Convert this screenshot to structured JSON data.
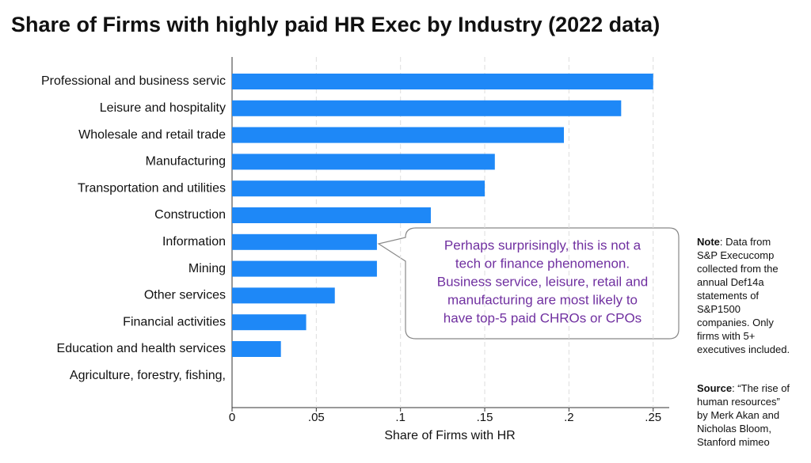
{
  "chart_data": {
    "type": "hbar",
    "title": "Share of Firms with highly paid HR Exec by Industry (2022 data)",
    "x_label": "Share of Firms with HR",
    "categories": [
      "Professional and business servic",
      "Leisure and hospitality",
      "Wholesale and retail trade",
      "Manufacturing",
      "Transportation and utilities",
      "Construction",
      "Information",
      "Mining",
      "Other services",
      "Financial activities",
      "Education and health services",
      "Agriculture, forestry, fishing,"
    ],
    "values": [
      0.25,
      0.231,
      0.197,
      0.156,
      0.15,
      0.118,
      0.086,
      0.086,
      0.061,
      0.044,
      0.029,
      0
    ],
    "color": "#1e88f7",
    "xlim": [
      0,
      0.26
    ],
    "xticks": [
      0,
      {
        "value": 0.05,
        "label": ".05"
      },
      {
        "value": 0.1,
        "label": ".1"
      },
      {
        "value": 0.15,
        "label": ".15"
      },
      {
        "value": 0.2,
        "label": ".2"
      },
      {
        "value": 0.25,
        "label": ".25"
      }
    ],
    "grid": true,
    "annotation": [
      "Perhaps surprisingly, this is not a",
      "tech or finance phenomenon.",
      "Business service, leisure, retail and",
      "manufacturing are most likely to",
      "have top-5 paid CHROs or CPOs"
    ],
    "note": {
      "label": "Note",
      "lines": [
        ": Data from",
        "S&P Execucomp",
        "collected from the",
        "annual Def14a",
        "statements of",
        "S&P1500",
        "companies. Only",
        "firms with 5+",
        "executives included."
      ]
    },
    "source": {
      "label": "Source",
      "lines": [
        ": “The rise of",
        "human resources”",
        "by Merk Akan and",
        "Nicholas Bloom,",
        "Stanford mimeo"
      ]
    }
  }
}
